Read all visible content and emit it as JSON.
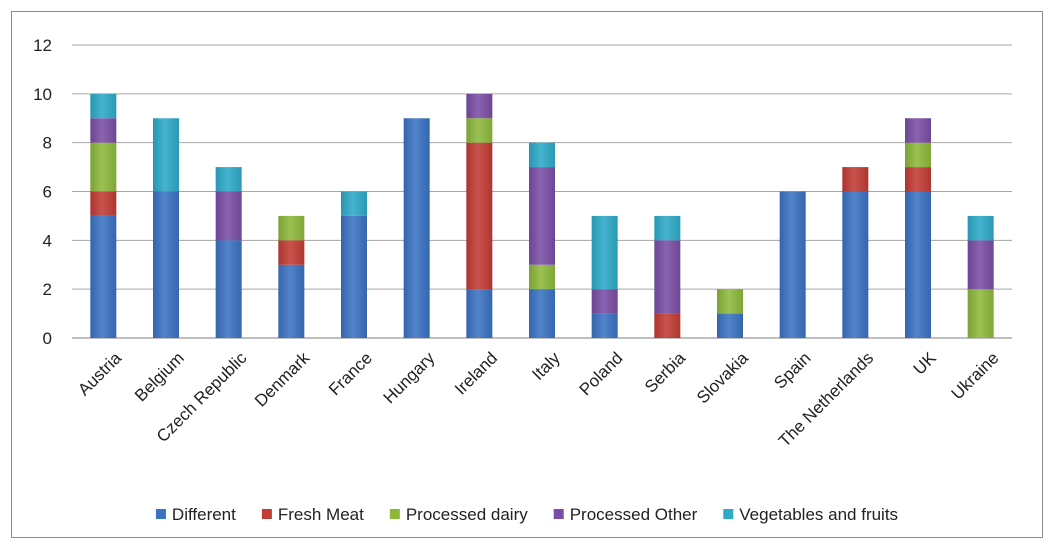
{
  "chart_data": {
    "type": "bar",
    "stacked": true,
    "categories": [
      "Austria",
      "Belgium",
      "Czech Republic",
      "Denmark",
      "France",
      "Hungary",
      "Ireland",
      "Italy",
      "Poland",
      "Serbia",
      "Slovakia",
      "Spain",
      "The Netherlands",
      "UK",
      "Ukraine"
    ],
    "series": [
      {
        "name": "Different",
        "color": "#3a72c4",
        "values": [
          5,
          6,
          4,
          3,
          5,
          9,
          2,
          2,
          1,
          0,
          1,
          6,
          6,
          6,
          0
        ]
      },
      {
        "name": "Fresh Meat",
        "color": "#c23b35",
        "values": [
          1,
          0,
          0,
          1,
          0,
          0,
          6,
          0,
          0,
          1,
          0,
          0,
          1,
          1,
          0
        ]
      },
      {
        "name": "Processed dairy",
        "color": "#8db83c",
        "values": [
          2,
          0,
          0,
          1,
          0,
          0,
          1,
          1,
          0,
          0,
          1,
          0,
          0,
          1,
          2
        ]
      },
      {
        "name": "Processed Other",
        "color": "#7a4ea6",
        "values": [
          1,
          0,
          2,
          0,
          0,
          0,
          1,
          4,
          1,
          3,
          0,
          0,
          0,
          1,
          2
        ]
      },
      {
        "name": "Vegetables and fruits",
        "color": "#2eaac8",
        "values": [
          1,
          3,
          1,
          0,
          1,
          0,
          0,
          1,
          3,
          1,
          0,
          0,
          0,
          0,
          1
        ]
      }
    ],
    "ylim": [
      0,
      12
    ],
    "yticks": [
      "0",
      "2",
      "4",
      "6",
      "8",
      "10",
      "12"
    ],
    "grid": true,
    "legend_position": "bottom",
    "title": "",
    "xlabel": "",
    "ylabel": ""
  }
}
